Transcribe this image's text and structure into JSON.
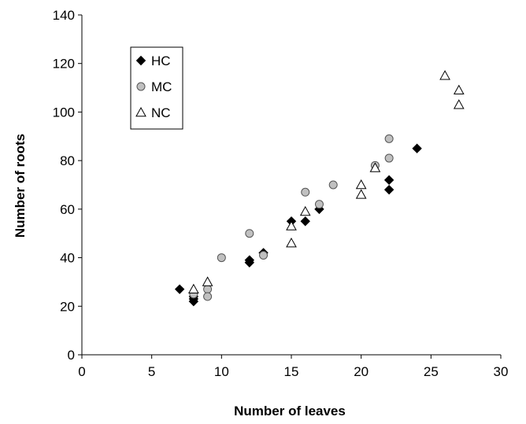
{
  "chart_data": {
    "type": "scatter",
    "xlabel": "Number of leaves",
    "ylabel": "Number of roots",
    "xlim": [
      0,
      30
    ],
    "ylim": [
      0,
      140
    ],
    "xticks": [
      0,
      5,
      10,
      15,
      20,
      25,
      30
    ],
    "yticks": [
      0,
      20,
      40,
      60,
      80,
      100,
      120,
      140
    ],
    "grid": false,
    "legend_position": "top-left",
    "series": [
      {
        "name": "HC",
        "marker": "diamond",
        "color": "#000000",
        "points": [
          {
            "x": 7,
            "y": 27
          },
          {
            "x": 8,
            "y": 24
          },
          {
            "x": 8,
            "y": 23
          },
          {
            "x": 8,
            "y": 22
          },
          {
            "x": 12,
            "y": 39
          },
          {
            "x": 12,
            "y": 38
          },
          {
            "x": 13,
            "y": 42
          },
          {
            "x": 15,
            "y": 55
          },
          {
            "x": 16,
            "y": 55
          },
          {
            "x": 17,
            "y": 60
          },
          {
            "x": 22,
            "y": 72
          },
          {
            "x": 22,
            "y": 68
          },
          {
            "x": 24,
            "y": 85
          }
        ]
      },
      {
        "name": "MC",
        "marker": "circle",
        "color": "#c0c0c0",
        "points": [
          {
            "x": 8,
            "y": 25
          },
          {
            "x": 9,
            "y": 27
          },
          {
            "x": 9,
            "y": 24
          },
          {
            "x": 10,
            "y": 40
          },
          {
            "x": 12,
            "y": 50
          },
          {
            "x": 13,
            "y": 41
          },
          {
            "x": 16,
            "y": 67
          },
          {
            "x": 17,
            "y": 62
          },
          {
            "x": 18,
            "y": 70
          },
          {
            "x": 21,
            "y": 78
          },
          {
            "x": 22,
            "y": 89
          },
          {
            "x": 22,
            "y": 81
          }
        ]
      },
      {
        "name": "NC",
        "marker": "triangle",
        "color": "#ffffff",
        "points": [
          {
            "x": 8,
            "y": 27
          },
          {
            "x": 9,
            "y": 30
          },
          {
            "x": 15,
            "y": 53
          },
          {
            "x": 15,
            "y": 46
          },
          {
            "x": 16,
            "y": 59
          },
          {
            "x": 20,
            "y": 70
          },
          {
            "x": 20,
            "y": 66
          },
          {
            "x": 21,
            "y": 77
          },
          {
            "x": 26,
            "y": 115
          },
          {
            "x": 27,
            "y": 109
          },
          {
            "x": 27,
            "y": 103
          }
        ]
      }
    ]
  }
}
